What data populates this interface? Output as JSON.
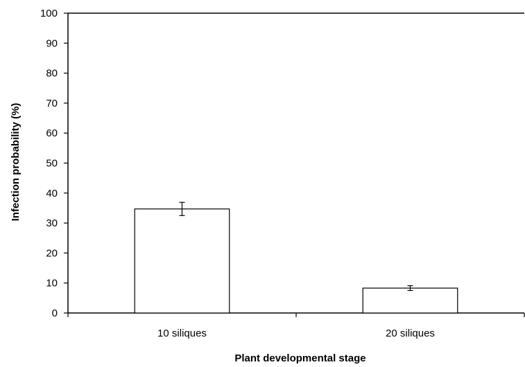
{
  "chart_data": {
    "type": "bar",
    "title": "",
    "xlabel": "Plant developmental stage",
    "ylabel": "Infection probability (%)",
    "categories": [
      "10 siliques",
      "20 siliques"
    ],
    "values": [
      34.7,
      8.3
    ],
    "errors": [
      2.2,
      0.8
    ],
    "ylim": [
      0,
      100
    ],
    "yticks": [
      0,
      10,
      20,
      30,
      40,
      50,
      60,
      70,
      80,
      90,
      100
    ],
    "grid": false,
    "legend": "none",
    "bar_fill": "#ffffff",
    "bar_stroke": "#000000"
  }
}
